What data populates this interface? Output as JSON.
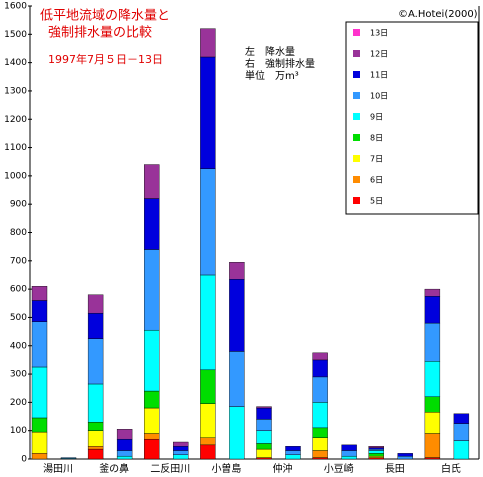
{
  "chart_data": {
    "type": "stacked-bar",
    "title": [
      "低平地流域の降水量と",
      "強制排水量の比較"
    ],
    "subtitle": "1997年7月５日－13日",
    "credit": "©A.Hotei(2000)",
    "notes": [
      "左　降水量",
      "右　強制排水量",
      "単位　万m³"
    ],
    "categories": [
      "湯田川",
      null,
      "釜の鼻",
      null,
      "二反田川",
      null,
      "小曽島",
      null,
      "仲沖",
      null,
      "小豆崎",
      null,
      "長田",
      null,
      "白氏",
      null
    ],
    "series": [
      {
        "name": "5日",
        "color": "#ff0000",
        "values": [
          0,
          0,
          35,
          0,
          70,
          0,
          50,
          0,
          5,
          0,
          5,
          0,
          5,
          0,
          5,
          0
        ]
      },
      {
        "name": "6日",
        "color": "#ff8c00",
        "values": [
          20,
          0,
          10,
          0,
          20,
          0,
          25,
          0,
          0,
          0,
          25,
          0,
          0,
          0,
          85,
          0
        ]
      },
      {
        "name": "7日",
        "color": "#ffff00",
        "values": [
          75,
          0,
          55,
          0,
          90,
          0,
          120,
          0,
          30,
          0,
          45,
          0,
          5,
          0,
          75,
          0
        ]
      },
      {
        "name": "8日",
        "color": "#00dd00",
        "values": [
          50,
          0,
          30,
          0,
          60,
          0,
          120,
          0,
          20,
          0,
          35,
          0,
          10,
          0,
          55,
          0
        ]
      },
      {
        "name": "9日",
        "color": "#00ffff",
        "values": [
          180,
          2,
          135,
          10,
          215,
          15,
          335,
          185,
          45,
          15,
          90,
          10,
          10,
          0,
          125,
          65
        ]
      },
      {
        "name": "10日",
        "color": "#3399ff",
        "values": [
          160,
          3,
          160,
          20,
          285,
          15,
          375,
          195,
          40,
          15,
          90,
          20,
          5,
          10,
          135,
          60
        ]
      },
      {
        "name": "11日",
        "color": "#0000dd",
        "values": [
          75,
          0,
          90,
          40,
          180,
          15,
          395,
          255,
          40,
          15,
          60,
          20,
          5,
          10,
          95,
          35
        ]
      },
      {
        "name": "12日",
        "color": "#993399",
        "values": [
          50,
          0,
          65,
          35,
          120,
          15,
          100,
          60,
          5,
          0,
          25,
          0,
          5,
          0,
          25,
          0
        ]
      },
      {
        "name": "13日",
        "color": "#ff33cc",
        "values": [
          0,
          0,
          0,
          0,
          0,
          0,
          0,
          0,
          0,
          0,
          0,
          0,
          0,
          0,
          0,
          0
        ]
      }
    ],
    "ylim": [
      0,
      1600
    ],
    "yticks": [
      0,
      100,
      200,
      300,
      400,
      500,
      600,
      700,
      800,
      900,
      1000,
      1100,
      1200,
      1300,
      1400,
      1500,
      1600
    ]
  }
}
